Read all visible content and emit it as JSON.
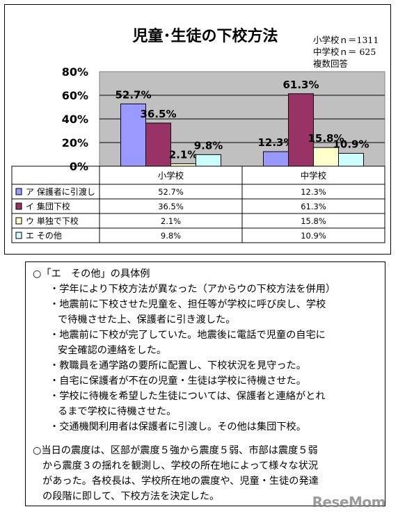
{
  "chart_data": {
    "type": "bar",
    "title": "児童･生徒の下校方法",
    "notes": [
      "小学校ｎ＝1311",
      "中学校ｎ＝ 625",
      "複数回答"
    ],
    "categories": [
      "小学校",
      "中学校"
    ],
    "ylim": [
      0,
      80
    ],
    "yticks": [
      "0%",
      "20%",
      "40%",
      "60%",
      "80%"
    ],
    "grid": true,
    "legend": "table-below",
    "series": [
      {
        "name": "ア 保護者に引渡し",
        "values": [
          52.7,
          12.3
        ],
        "labels": [
          "52.7%",
          "12.3%"
        ],
        "color": "#9999ff"
      },
      {
        "name": "イ 集団下校",
        "values": [
          36.5,
          61.3
        ],
        "labels": [
          "36.5%",
          "61.3%"
        ],
        "color": "#993366"
      },
      {
        "name": "ウ 単独で下校",
        "values": [
          2.1,
          15.8
        ],
        "labels": [
          "2.1%",
          "15.8%"
        ],
        "color": "#ffffcc"
      },
      {
        "name": "エ その他",
        "values": [
          9.8,
          10.9
        ],
        "labels": [
          "9.8%",
          "10.9%"
        ],
        "color": "#ccffff"
      }
    ],
    "table_values": [
      [
        "52.7%",
        "12.3%"
      ],
      [
        "36.5%",
        "61.3%"
      ],
      [
        "2.1%",
        "15.8%"
      ],
      [
        "9.8%",
        "10.9%"
      ]
    ],
    "plot_bg": "#c0c0c0"
  },
  "notes_box": {
    "heading": "○「エ　その他」の具体例",
    "items": [
      "・学年により下校方法が異なった（アからウの下校方法を併用）",
      "・地震前に下校させた児童を、担任等が学校に呼び戻し、学校",
      "で待機させた上、保護者に引き渡した。",
      "・地震前に下校が完了していた。地震後に電話で児童の自宅に",
      "安全確認の連絡をした。",
      "・教職員を通学路の要所に配置し、下校状況を見守った。",
      "・自宅に保護者が不在の児童・生徒は学校に待機させた。",
      "・学校に待機を希望した生徒については、保護者と連絡がとれ",
      "るまで学校に待機させた。",
      "・交通機関利用者は保護者に引渡し。その他は集団下校。"
    ],
    "paragraph": [
      "○当日の震度は、区部が震度５強から震度５弱、市部は震度５弱",
      "から震度３の揺れを観測し、学校の所在地によって様々な状況",
      "があった。各校長は、学校所在地の震度や、児童・生徒の発達",
      "の段階に即して、下校方法を決定した。"
    ]
  },
  "watermark": "ReseMom"
}
